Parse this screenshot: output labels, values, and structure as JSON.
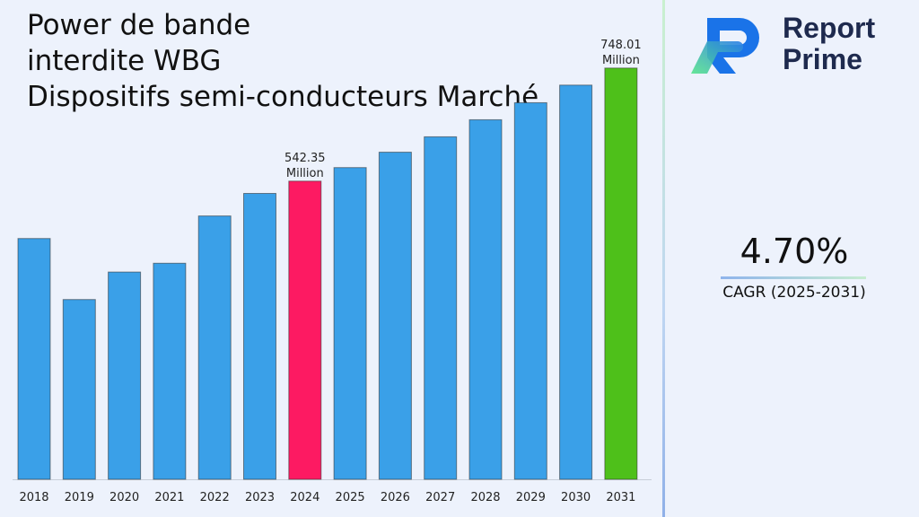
{
  "title": {
    "line1": "Power de bande",
    "line2": "interdite WBG",
    "line3": "Dispositifs semi-conducteurs Marché"
  },
  "logo": {
    "line1": "Report",
    "line2": "Prime",
    "icon": "report-prime-logo-icon"
  },
  "cagr": {
    "value": "4.70%",
    "label": "CAGR (2025-2031)"
  },
  "colors": {
    "bar": "#3aa0e8",
    "highlight_start": "#fd1a62",
    "highlight_end": "#4ec01a"
  },
  "chart_data": {
    "type": "bar",
    "categories": [
      "2018",
      "2019",
      "2020",
      "2021",
      "2022",
      "2023",
      "2024",
      "2025",
      "2026",
      "2027",
      "2028",
      "2029",
      "2030",
      "2031"
    ],
    "values": [
      438,
      327,
      377,
      393,
      479,
      520,
      542.35,
      567,
      595,
      623,
      654,
      685,
      717,
      748.01
    ],
    "ylim": [
      0,
      800
    ],
    "annotations": [
      {
        "category": "2024",
        "value": "542.35",
        "unit": "Million"
      },
      {
        "category": "2031",
        "value": "748.01",
        "unit": "Million"
      }
    ],
    "highlight": {
      "2024": "#fd1a62",
      "2031": "#4ec01a"
    },
    "grid": false
  }
}
